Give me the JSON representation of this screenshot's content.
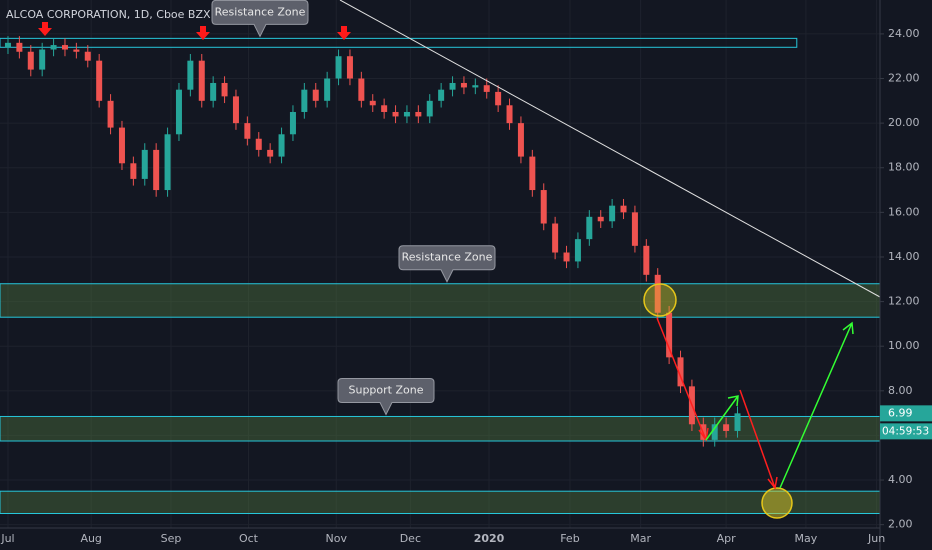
{
  "chart_data": {
    "type": "candlestick",
    "title": "ALCOA CORPORATION, 1D, Cboe BZX",
    "open": [
      23.4,
      23.6,
      23.2,
      22.4,
      23.3,
      23.5,
      23.3,
      23.2,
      22.8,
      21.0,
      19.8,
      18.2,
      17.5,
      18.8,
      17.0,
      19.5,
      21.5,
      22.8,
      21.0,
      21.8,
      21.2,
      20.0,
      19.3,
      18.8,
      18.5,
      19.5,
      20.5,
      21.5,
      21.0,
      22.0,
      23.0,
      22.0,
      21.0,
      20.8,
      20.5,
      20.3,
      20.5,
      20.3,
      21.0,
      21.5,
      21.8,
      21.6,
      21.7,
      21.4,
      20.8,
      20.0,
      18.5,
      17.0,
      15.5,
      14.2,
      13.8,
      14.8,
      15.8,
      15.6,
      16.3,
      16.0,
      14.5,
      13.2,
      11.5,
      9.5,
      8.2,
      6.5,
      5.8,
      6.5,
      6.2
    ],
    "high": [
      23.9,
      23.9,
      23.5,
      23.6,
      23.8,
      23.8,
      23.6,
      23.5,
      23.1,
      21.3,
      20.1,
      18.5,
      19.1,
      19.1,
      19.8,
      21.8,
      23.1,
      23.1,
      22.1,
      22.1,
      21.5,
      20.3,
      19.6,
      19.1,
      19.8,
      20.8,
      21.8,
      21.8,
      22.3,
      23.3,
      23.3,
      22.3,
      21.3,
      21.1,
      20.8,
      20.8,
      20.8,
      21.3,
      21.8,
      22.1,
      22.1,
      22.0,
      22.0,
      21.7,
      21.1,
      20.3,
      18.8,
      17.3,
      15.8,
      14.5,
      15.1,
      16.1,
      16.1,
      16.6,
      16.6,
      16.3,
      14.8,
      13.5,
      11.8,
      9.8,
      8.5,
      6.8,
      6.8,
      6.8,
      7.3
    ],
    "low": [
      23.1,
      22.9,
      22.1,
      22.1,
      23.0,
      23.0,
      22.9,
      22.5,
      20.7,
      19.5,
      17.9,
      17.2,
      17.2,
      16.7,
      16.7,
      19.2,
      21.2,
      20.7,
      20.7,
      20.9,
      19.7,
      19.0,
      18.5,
      18.2,
      18.2,
      19.2,
      20.2,
      20.7,
      20.7,
      21.7,
      21.7,
      20.7,
      20.5,
      20.2,
      20.0,
      20.0,
      20.0,
      20.0,
      20.7,
      21.2,
      21.3,
      21.3,
      21.1,
      20.5,
      19.7,
      18.2,
      16.7,
      15.2,
      13.9,
      13.5,
      13.5,
      14.5,
      15.3,
      15.3,
      15.7,
      14.2,
      12.9,
      11.2,
      9.2,
      7.9,
      6.2,
      5.5,
      5.5,
      5.9,
      5.9
    ],
    "close": [
      23.6,
      23.2,
      22.4,
      23.3,
      23.5,
      23.3,
      23.2,
      22.8,
      21.0,
      19.8,
      18.2,
      17.5,
      18.8,
      17.0,
      19.5,
      21.5,
      22.8,
      21.0,
      21.8,
      21.2,
      20.0,
      19.3,
      18.8,
      18.5,
      19.5,
      20.5,
      21.5,
      21.0,
      22.0,
      23.0,
      22.0,
      21.0,
      20.8,
      20.5,
      20.3,
      20.5,
      20.3,
      21.0,
      21.5,
      21.8,
      21.6,
      21.7,
      21.4,
      20.8,
      20.0,
      18.5,
      17.0,
      15.5,
      14.2,
      13.8,
      14.8,
      15.8,
      15.6,
      16.3,
      16.0,
      14.5,
      13.2,
      11.5,
      9.5,
      8.2,
      6.5,
      5.8,
      6.5,
      6.2,
      6.99
    ],
    "up_color": "#26a69a",
    "down_color": "#ef5350",
    "countdown": "04:59:53",
    "xlim": [
      -0.7,
      76.5
    ],
    "xticks": [
      {
        "value": 0,
        "label": "Jul"
      },
      {
        "value": 7.3,
        "label": "Aug"
      },
      {
        "value": 14.3,
        "label": "Sep"
      },
      {
        "value": 21.1,
        "label": "Oct"
      },
      {
        "value": 28.8,
        "label": "Nov"
      },
      {
        "value": 35.3,
        "label": "Dec"
      },
      {
        "value": 42.2,
        "label": "2020"
      },
      {
        "value": 49.3,
        "label": "Feb"
      },
      {
        "value": 55.5,
        "label": "Mar"
      },
      {
        "value": 63,
        "label": "Apr"
      },
      {
        "value": 70,
        "label": "May"
      },
      {
        "value": 76.2,
        "label": "Jun"
      }
    ],
    "ylim": [
      1.85,
      25.52
    ],
    "yticks": [
      {
        "value": 2,
        "label": "2.00"
      },
      {
        "value": 4,
        "label": "4.00"
      },
      {
        "value": 6,
        "label": "6.00"
      },
      {
        "value": 8,
        "label": "8.00"
      },
      {
        "value": 10,
        "label": "10.00"
      },
      {
        "value": 12,
        "label": "12.00"
      },
      {
        "value": 14,
        "label": "14.00"
      },
      {
        "value": 16,
        "label": "16.00"
      },
      {
        "value": 18,
        "label": "18.00"
      },
      {
        "value": 20,
        "label": "20.00"
      },
      {
        "value": 22,
        "label": "22.00"
      },
      {
        "value": 24,
        "label": "24.00"
      }
    ],
    "grid": true,
    "zones": [
      {
        "label": "Resistance Zone",
        "low": 23.4,
        "high": 23.8,
        "x_range": [
          -0.7,
          69.2
        ]
      },
      {
        "label": "Resistance Zone",
        "low": 11.3,
        "high": 12.8
      },
      {
        "label": "Support Zone",
        "low": 5.75,
        "high": 6.85
      },
      {
        "low": 2.5,
        "high": 3.5
      }
    ]
  }
}
